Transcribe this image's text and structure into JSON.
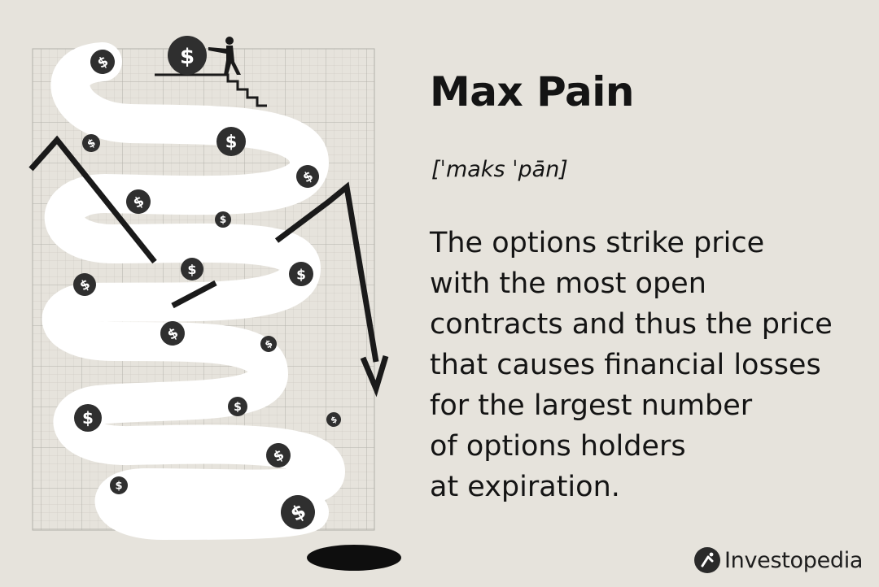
{
  "title": "Max Pain",
  "pronunciation": "[ˈmaks ˈpān]",
  "definition_lines": [
    "The options strike price",
    "with the most open",
    "contracts and thus the price",
    "that causes financial losses",
    "for the largest number",
    "of options holders",
    "at expiration."
  ],
  "brand": {
    "name": "Investopedia",
    "logo_icon": "investopedia-logo-icon"
  },
  "coin_symbol": "$",
  "colors": {
    "background": "#e6e3dc",
    "grid": "#bdbab4",
    "path": "#ffffff",
    "coin": "#2f2f2f",
    "ink": "#141414"
  }
}
